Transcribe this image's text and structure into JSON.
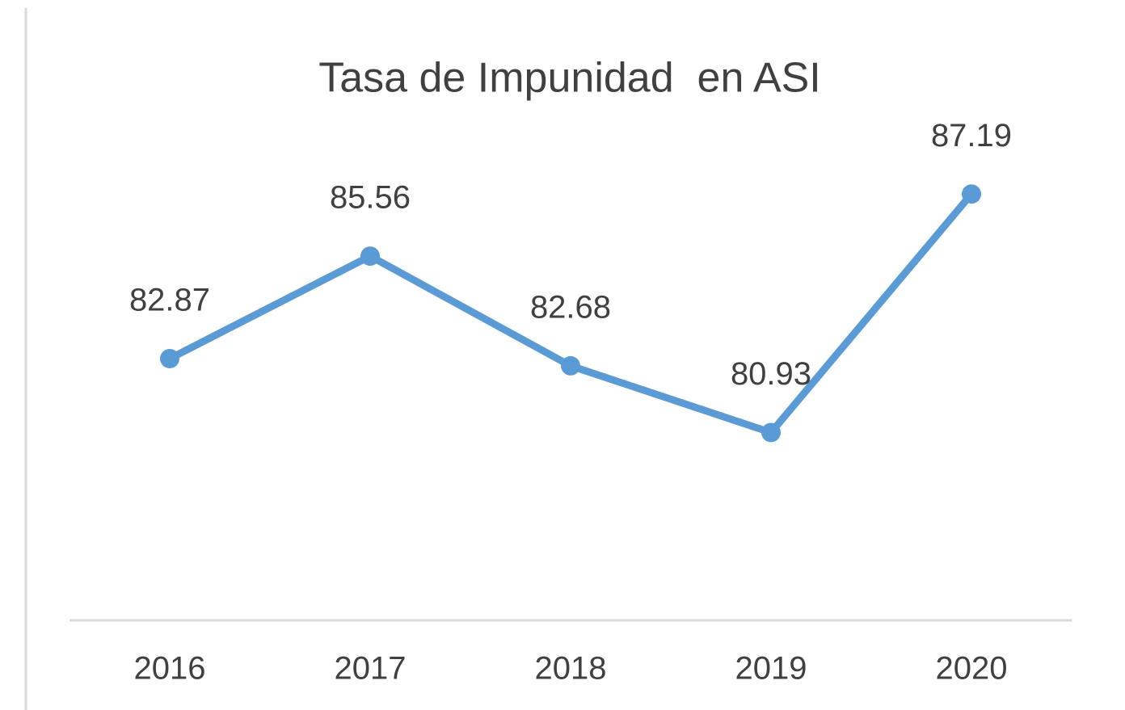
{
  "chart_data": {
    "type": "line",
    "title": "Tasa de Impunidad  en ASI",
    "categories": [
      "2016",
      "2017",
      "2018",
      "2019",
      "2020"
    ],
    "series": [
      {
        "name": "Tasa de Impunidad",
        "color": "#5b9bd5",
        "values": [
          82.87,
          85.56,
          82.68,
          80.93,
          87.19
        ]
      }
    ],
    "ylim": [
      76,
      88
    ]
  }
}
